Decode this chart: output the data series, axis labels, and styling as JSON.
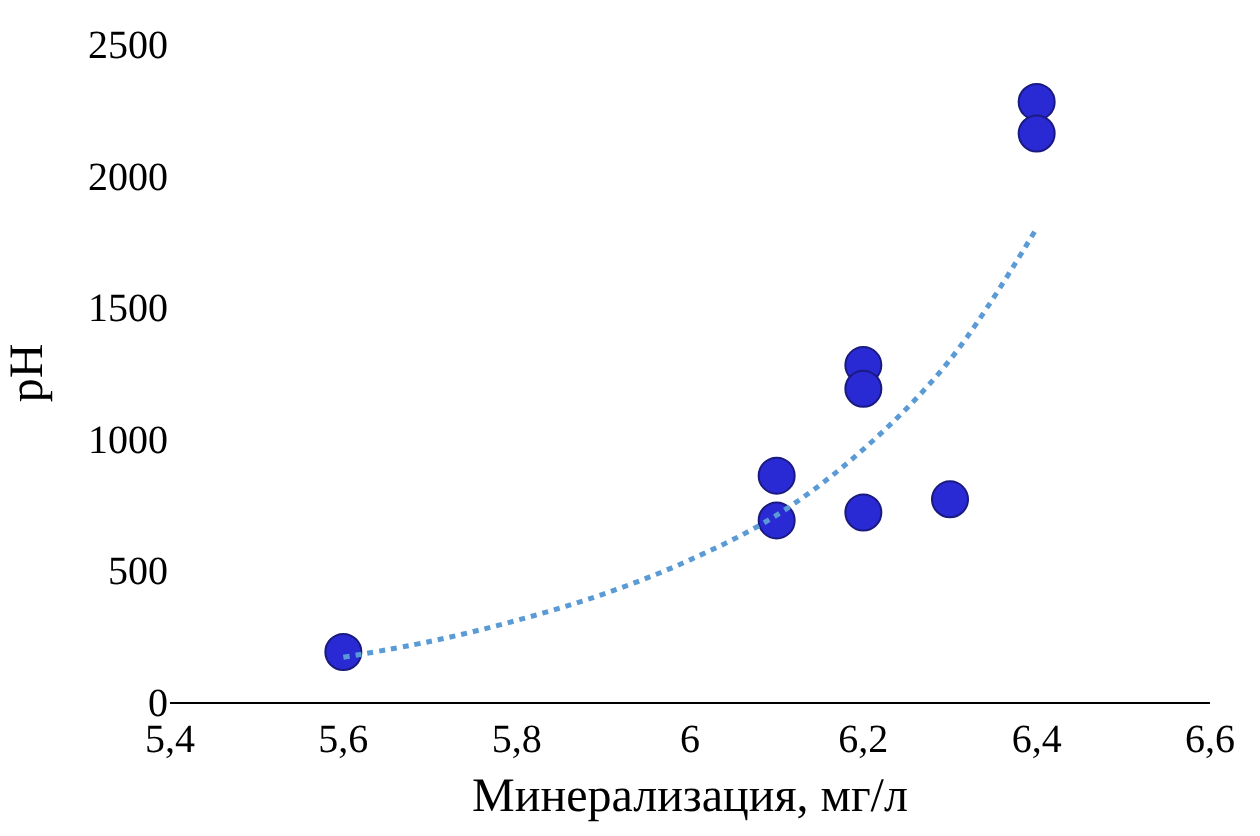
{
  "chart_data": {
    "type": "scatter",
    "xlabel": "Минерализация, мг/л",
    "ylabel": "pH",
    "xlim": [
      5.4,
      6.6
    ],
    "xticks": [
      {
        "value": 5.4,
        "label": "5,4"
      },
      {
        "value": 5.6,
        "label": "5,6"
      },
      {
        "value": 5.8,
        "label": "5,8"
      },
      6,
      {
        "value": 6.2,
        "label": "6,2"
      },
      {
        "value": 6.4,
        "label": "6,4"
      },
      {
        "value": 6.6,
        "label": "6,6"
      }
    ],
    "ylim": [
      0,
      2500
    ],
    "yticks": [
      0,
      500,
      1000,
      1500,
      2000,
      2500
    ],
    "series": [
      {
        "color": "#2a2ad4",
        "marker": "circle",
        "x": [
          5.6,
          6.1,
          6.1,
          6.2,
          6.2,
          6.2,
          6.3,
          6.4,
          6.4
        ],
        "values": [
          190,
          860,
          690,
          1280,
          1190,
          720,
          770,
          2280,
          2160
        ]
      },
      {
        "type": "line",
        "color": "#5b9bd5",
        "line_style": "dotted",
        "marker": "none",
        "x": [
          5.6,
          5.7,
          5.8,
          5.9,
          6.0,
          6.1,
          6.2,
          6.3,
          6.4
        ],
        "values": [
          170,
          230,
          310,
          410,
          540,
          710,
          960,
          1300,
          1800
        ]
      }
    ]
  }
}
